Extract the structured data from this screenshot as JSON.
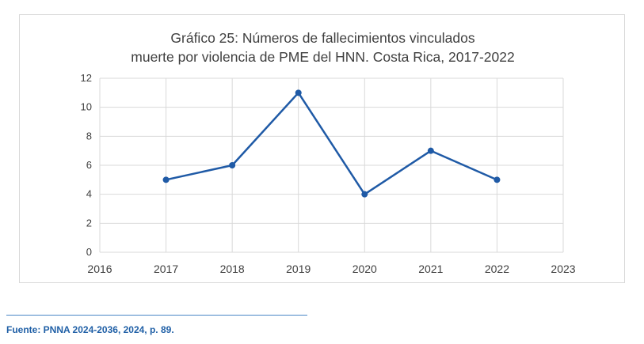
{
  "chart_data": {
    "type": "line",
    "title_line1": "Gráfico 25: Números de fallecimientos vinculados",
    "title_line2": "muerte por violencia de PME del HNN. Costa Rica, 2017-2022",
    "x_ticks": [
      "2016",
      "2017",
      "2018",
      "2019",
      "2020",
      "2021",
      "2022",
      "2023"
    ],
    "y_ticks": [
      "0",
      "2",
      "4",
      "6",
      "8",
      "10",
      "12"
    ],
    "xlim": [
      2016,
      2023
    ],
    "ylim": [
      0,
      12
    ],
    "grid": true,
    "series": [
      {
        "x": [
          2017,
          2018,
          2019,
          2020,
          2021,
          2022
        ],
        "y": [
          5,
          6,
          11,
          4,
          7,
          5
        ],
        "color": "#1f5aa6"
      }
    ]
  },
  "source": {
    "text": "Fuente: PNNA 2024-2036, 2024, p. 89."
  }
}
